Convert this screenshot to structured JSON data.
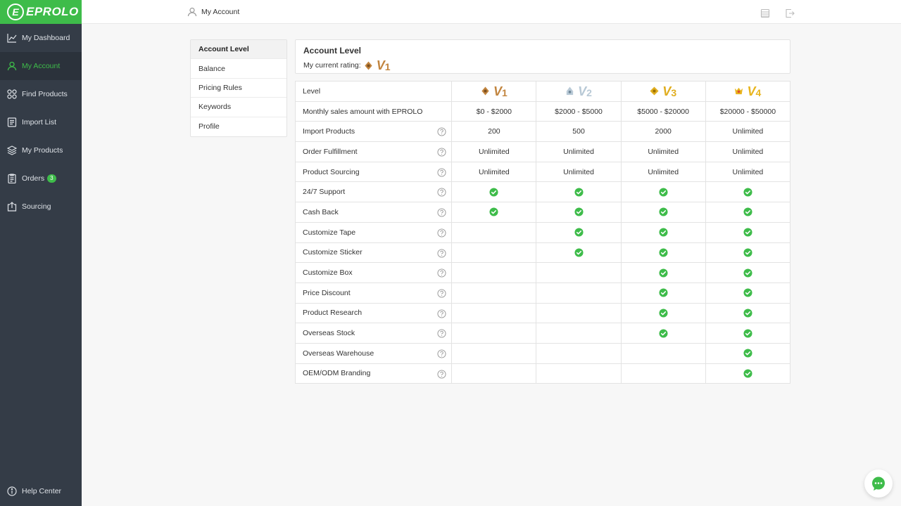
{
  "brand": {
    "name": "EPROLO",
    "accent": "#3ebc4a"
  },
  "sidebar": {
    "items": [
      {
        "label": "My Dashboard",
        "icon": "chart-line-icon"
      },
      {
        "label": "My Account",
        "icon": "user-icon",
        "active": true
      },
      {
        "label": "Find Products",
        "icon": "grid-icon"
      },
      {
        "label": "Import List",
        "icon": "list-icon"
      },
      {
        "label": "My Products",
        "icon": "layers-icon"
      },
      {
        "label": "Orders",
        "icon": "clipboard-icon",
        "badge": "3"
      },
      {
        "label": "Sourcing",
        "icon": "upload-icon"
      }
    ],
    "help_label": "Help Center"
  },
  "topbar": {
    "breadcrumb": "My Account"
  },
  "submenu": [
    "Account Level",
    "Balance",
    "Pricing Rules",
    "Keywords",
    "Profile"
  ],
  "account_card": {
    "title": "Account Level",
    "rating_label": "My current rating:",
    "current_level": {
      "v": "V",
      "num": "1"
    }
  },
  "table": {
    "levels": [
      {
        "v": "V",
        "num": "1",
        "color": "#c2853f"
      },
      {
        "v": "V",
        "num": "2",
        "color": "#b8c9d6"
      },
      {
        "v": "V",
        "num": "3",
        "color": "#e0ad1f"
      },
      {
        "v": "V",
        "num": "4",
        "color": "#e8b51e"
      }
    ],
    "level_label": "Level",
    "sales_label": "Monthly sales amount with EPROLO",
    "sales": [
      "$0 - $2000",
      "$2000 - $5000",
      "$5000 - $20000",
      "$20000 - $50000"
    ],
    "rows": [
      {
        "label": "Import Products",
        "values": [
          "200",
          "500",
          "2000",
          "Unlimited"
        ]
      },
      {
        "label": "Order Fulfillment",
        "values": [
          "Unlimited",
          "Unlimited",
          "Unlimited",
          "Unlimited"
        ]
      },
      {
        "label": "Product Sourcing",
        "values": [
          "Unlimited",
          "Unlimited",
          "Unlimited",
          "Unlimited"
        ]
      },
      {
        "label": "24/7 Support",
        "checks": [
          true,
          true,
          true,
          true
        ]
      },
      {
        "label": "Cash Back",
        "checks": [
          true,
          true,
          true,
          true
        ]
      },
      {
        "label": "Customize Tape",
        "checks": [
          false,
          true,
          true,
          true
        ]
      },
      {
        "label": "Customize Sticker",
        "checks": [
          false,
          true,
          true,
          true
        ]
      },
      {
        "label": "Customize Box",
        "checks": [
          false,
          false,
          true,
          true
        ]
      },
      {
        "label": "Price Discount",
        "checks": [
          false,
          false,
          true,
          true
        ]
      },
      {
        "label": "Product Research",
        "checks": [
          false,
          false,
          true,
          true
        ]
      },
      {
        "label": "Overseas Stock",
        "checks": [
          false,
          false,
          true,
          true
        ]
      },
      {
        "label": "Overseas Warehouse",
        "checks": [
          false,
          false,
          false,
          true
        ]
      },
      {
        "label": "OEM/ODM Branding",
        "checks": [
          false,
          false,
          false,
          true
        ]
      }
    ]
  }
}
